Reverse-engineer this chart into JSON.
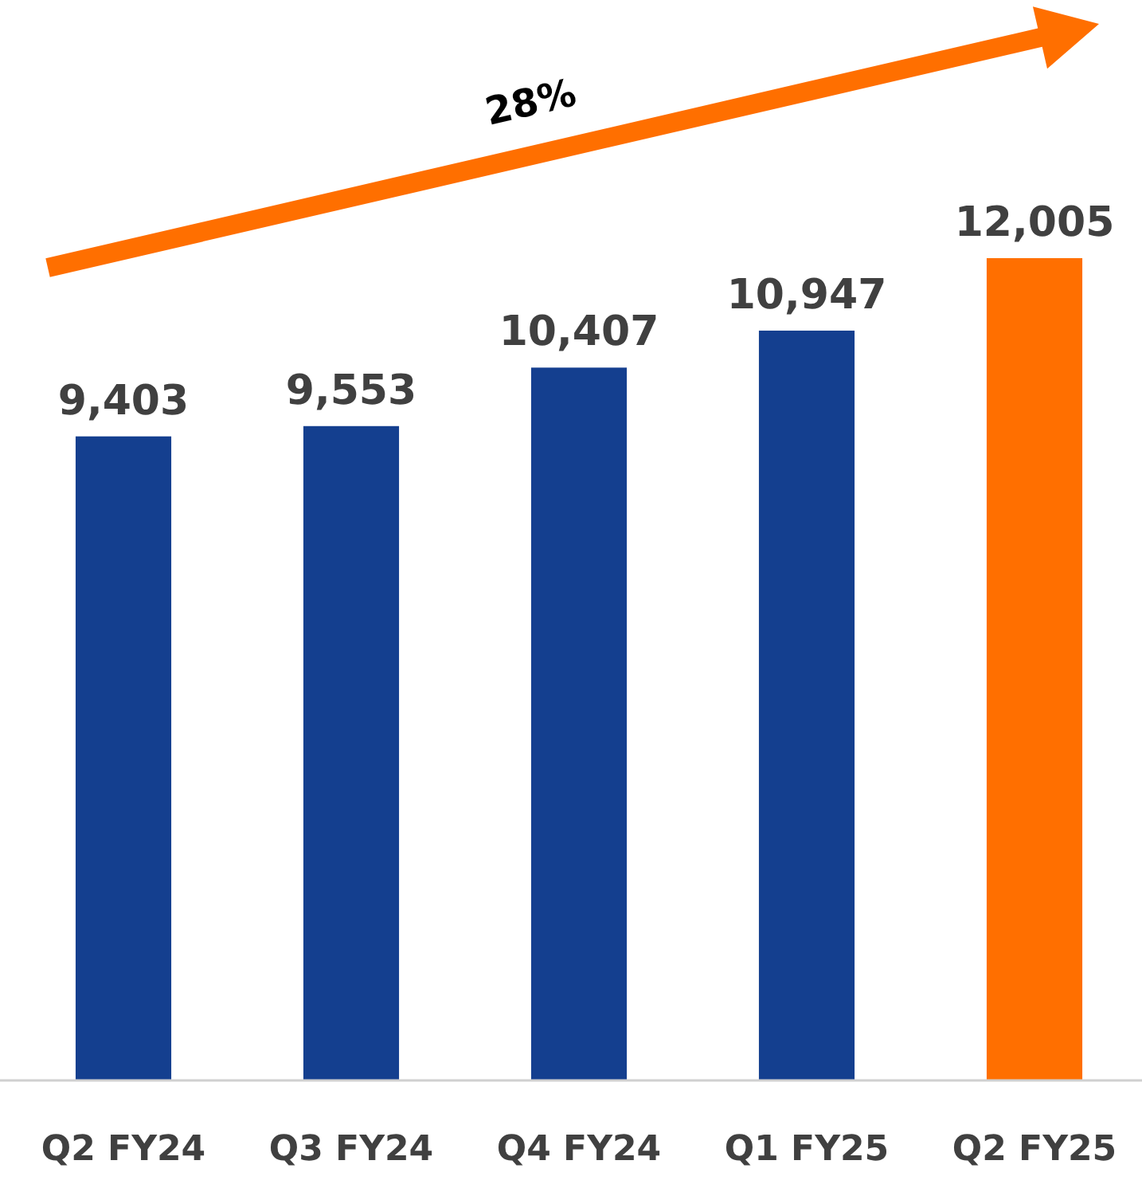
{
  "chart_data": {
    "type": "bar",
    "categories": [
      "Q2 FY24",
      "Q3 FY24",
      "Q4 FY24",
      "Q1 FY25",
      "Q2 FY25"
    ],
    "values": [
      9403,
      9553,
      10407,
      10947,
      12005
    ],
    "colors": [
      "#143f8f",
      "#143f8f",
      "#143f8f",
      "#143f8f",
      "#ff6f00"
    ],
    "data_labels": true,
    "value_labels": [
      "9,403",
      "9,553",
      "10,407",
      "10,947",
      "12,005"
    ],
    "tick_labels": "x",
    "annotations": [
      "28%"
    ]
  }
}
